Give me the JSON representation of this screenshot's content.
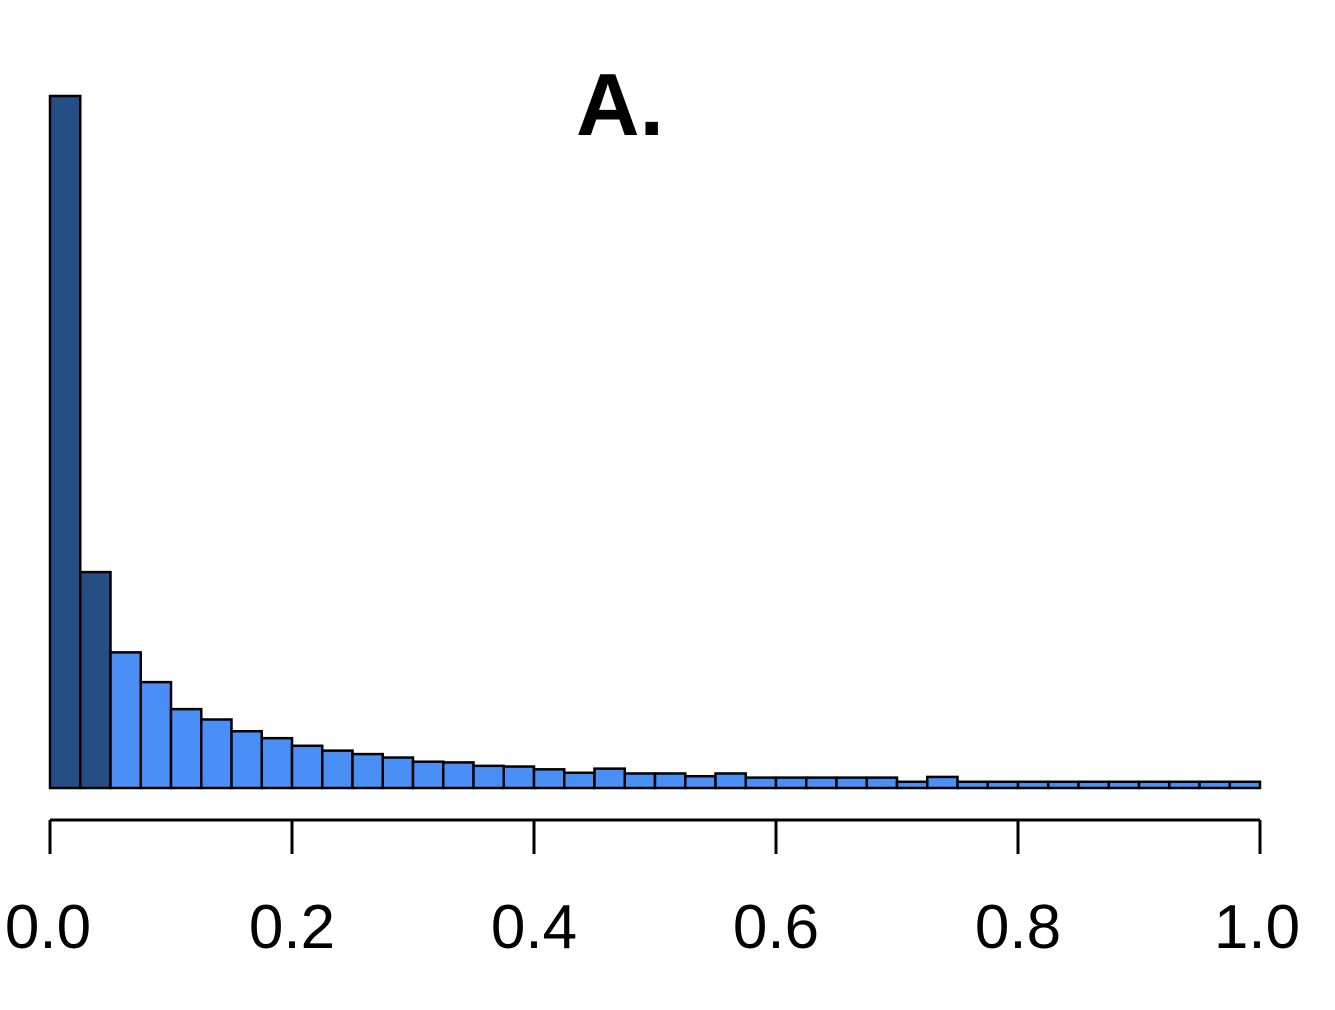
{
  "chart_data": {
    "type": "bar",
    "title": "A.",
    "xlabel": "",
    "ylabel": "",
    "xlim": [
      0,
      1
    ],
    "ylim": [
      0,
      1
    ],
    "bin_width": 0.025,
    "x_ticks": [
      "0.0",
      "0.2",
      "0.4",
      "0.6",
      "0.8",
      "1.0"
    ],
    "bin_starts": [
      0.0,
      0.025,
      0.05,
      0.075,
      0.1,
      0.125,
      0.15,
      0.175,
      0.2,
      0.225,
      0.25,
      0.275,
      0.3,
      0.325,
      0.35,
      0.375,
      0.4,
      0.425,
      0.45,
      0.475,
      0.5,
      0.525,
      0.55,
      0.575,
      0.6,
      0.625,
      0.65,
      0.675,
      0.7,
      0.725,
      0.75,
      0.775,
      0.8,
      0.825,
      0.85,
      0.875,
      0.9,
      0.925,
      0.95,
      0.975
    ],
    "values": [
      1.0,
      0.312,
      0.196,
      0.153,
      0.114,
      0.099,
      0.082,
      0.072,
      0.061,
      0.054,
      0.049,
      0.044,
      0.038,
      0.037,
      0.032,
      0.031,
      0.027,
      0.022,
      0.028,
      0.021,
      0.021,
      0.017,
      0.021,
      0.015,
      0.015,
      0.015,
      0.015,
      0.015,
      0.009,
      0.016,
      0.009,
      0.009,
      0.009,
      0.009,
      0.009,
      0.009,
      0.009,
      0.009,
      0.009,
      0.009
    ],
    "highlight_bins": 2,
    "colors": {
      "highlight": "#254e84",
      "normal": "#4a8ff5",
      "outline": "#000000"
    }
  }
}
